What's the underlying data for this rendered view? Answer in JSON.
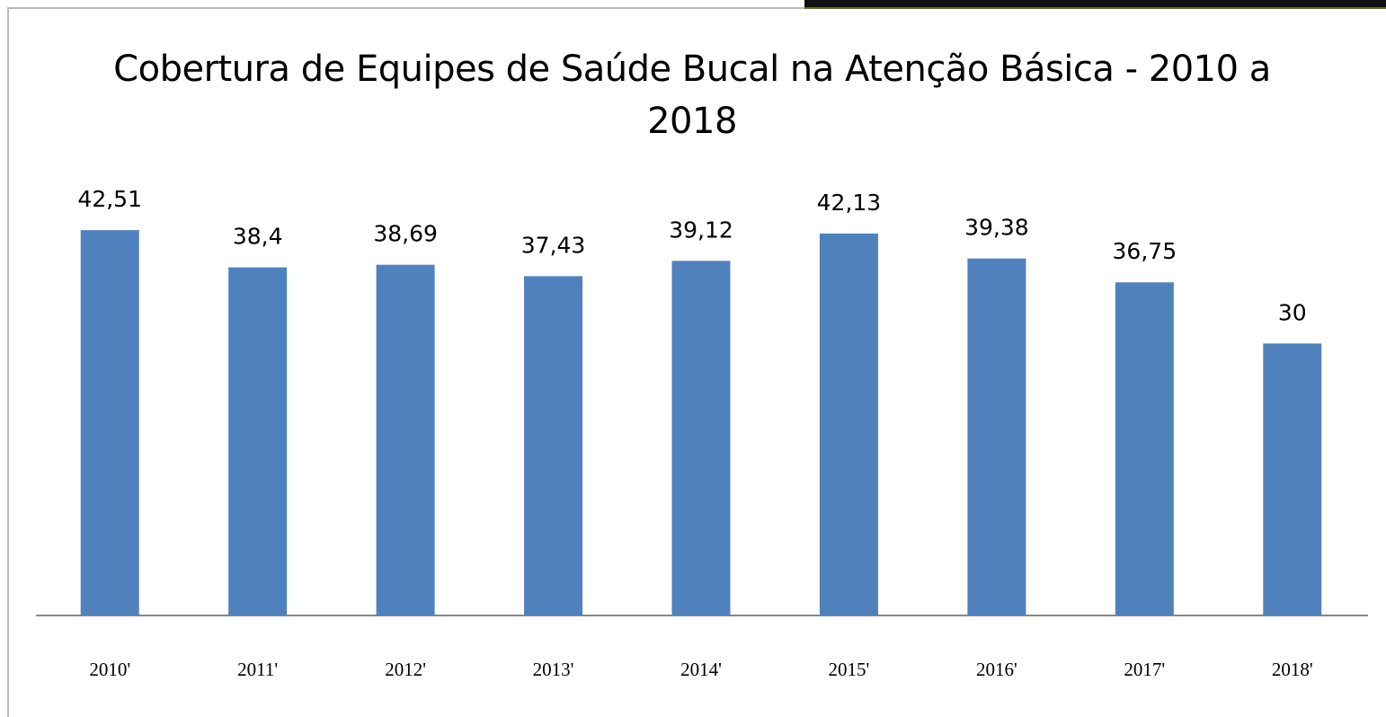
{
  "chart_data": {
    "type": "bar",
    "title": "Cobertura de Equipes de Saúde Bucal na Atenção Básica - 2010 a 2018",
    "categories": [
      "2010'",
      "2011'",
      "2012'",
      "2013'",
      "2014'",
      "2015'",
      "2016'",
      "2017'",
      "2018'"
    ],
    "values": [
      42.51,
      38.4,
      38.69,
      37.43,
      39.12,
      42.13,
      39.38,
      36.75,
      30
    ],
    "value_labels": [
      "42,51",
      "38,4",
      "38,69",
      "37,43",
      "39,12",
      "42,13",
      "39,38",
      "36,75",
      "30"
    ],
    "color": "#4f81bd",
    "ylim": [
      0,
      45
    ]
  }
}
